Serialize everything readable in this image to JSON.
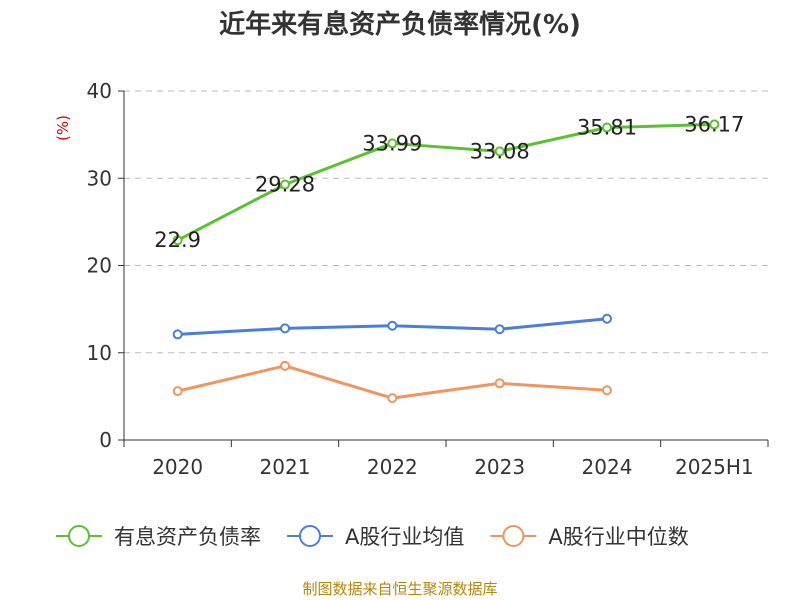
{
  "title": "近年来有息资产负债率情况(%)",
  "source": "制图数据来自恒生聚源数据库",
  "colors": {
    "series0": "#5cc12f",
    "series1": "#4a7ddc",
    "series2": "#f29460",
    "unit": "#dd0000",
    "axis": "#333333",
    "grid": "#bbbbbb",
    "text": "#333333"
  },
  "chart_data": {
    "type": "line",
    "title": "近年来有息资产负债率情况(%)",
    "xlabel": "",
    "ylabel": "(%)",
    "ylim": [
      0,
      40
    ],
    "yticks": [
      0,
      10,
      20,
      30,
      40
    ],
    "grid": true,
    "legend_position": "bottom",
    "categories": [
      "2020",
      "2021",
      "2022",
      "2023",
      "2024",
      "2025H1"
    ],
    "series": [
      {
        "name": "有息资产负债率",
        "values": [
          22.9,
          29.28,
          33.99,
          33.08,
          35.81,
          36.17
        ],
        "labels": [
          "22.9",
          "29.28",
          "33.99",
          "33.08",
          "35.81",
          "36.17"
        ],
        "show_labels": true
      },
      {
        "name": "A股行业均值",
        "values": [
          12.1,
          12.8,
          13.1,
          12.7,
          13.9,
          null
        ],
        "show_labels": false
      },
      {
        "name": "A股行业中位数",
        "values": [
          5.6,
          8.5,
          4.8,
          6.5,
          5.7,
          null
        ],
        "show_labels": false
      }
    ]
  }
}
